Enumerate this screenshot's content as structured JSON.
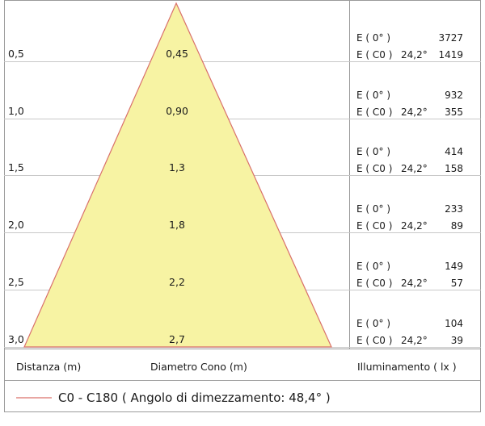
{
  "rows": [
    {
      "distance": "0,5",
      "diameter": "0,45",
      "e0_label": "E ( 0° )",
      "e0_value": "3727",
      "ec0_label": "E ( C0 )",
      "ec0_angle": "24,2°",
      "ec0_value": "1419"
    },
    {
      "distance": "1,0",
      "diameter": "0,90",
      "e0_label": "E ( 0° )",
      "e0_value": "932",
      "ec0_label": "E ( C0 )",
      "ec0_angle": "24,2°",
      "ec0_value": "355"
    },
    {
      "distance": "1,5",
      "diameter": "1,3",
      "e0_label": "E ( 0° )",
      "e0_value": "414",
      "ec0_label": "E ( C0 )",
      "ec0_angle": "24,2°",
      "ec0_value": "158"
    },
    {
      "distance": "2,0",
      "diameter": "1,8",
      "e0_label": "E ( 0° )",
      "e0_value": "233",
      "ec0_label": "E ( C0 )",
      "ec0_angle": "24,2°",
      "ec0_value": "89"
    },
    {
      "distance": "2,5",
      "diameter": "2,2",
      "e0_label": "E ( 0° )",
      "e0_value": "149",
      "ec0_label": "E ( C0 )",
      "ec0_angle": "24,2°",
      "ec0_value": "57"
    },
    {
      "distance": "3,0",
      "diameter": "2,7",
      "e0_label": "E ( 0° )",
      "e0_value": "104",
      "ec0_label": "E ( C0 )",
      "ec0_angle": "24,2°",
      "ec0_value": "39"
    }
  ],
  "footer": {
    "distance_label": "Distanza (m)",
    "diameter_label": "Diametro Cono (m)",
    "illuminance_label": "Illuminamento ( lx )"
  },
  "legend": {
    "text": "C0 - C180  ( Angolo di dimezzamento: 48,4° )",
    "line_color": "#d9706b"
  },
  "colors": {
    "cone_fill": "#f7f3a3",
    "cone_stroke": "#d9706b",
    "grid_line": "#c8c8c8",
    "border": "#9a9a9a"
  }
}
